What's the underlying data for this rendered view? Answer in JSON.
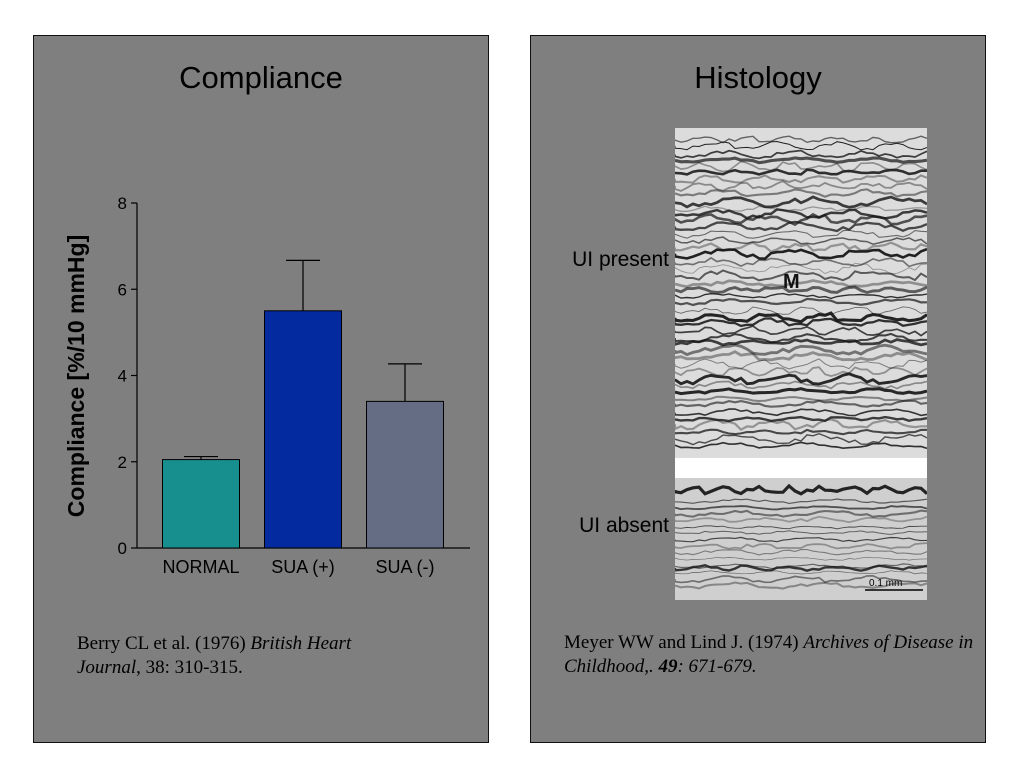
{
  "left_panel": {
    "title": "Compliance",
    "citation": {
      "authors": "Berry CL et al. (1976) ",
      "journal_a": "British Heart",
      "journal_b": "Journal",
      "rest": ", 38: 310-315."
    }
  },
  "right_panel": {
    "title": "Histology",
    "label_present": "UI present",
    "label_absent": "UI absent",
    "figure_mark": "M",
    "scale_label": "0.1 mm",
    "citation": {
      "authors": "Meyer WW and Lind J. (1974) ",
      "journal": "Archives of Disease in Childhood,. ",
      "volume": "49",
      "pages": ": 671-679."
    }
  },
  "chart_data": {
    "type": "bar",
    "ylabel": "Compliance [%/10 mmHg]",
    "categories": [
      "NORMAL",
      "SUA (+)",
      "SUA (-)"
    ],
    "values": [
      2.05,
      5.5,
      3.4
    ],
    "errors": [
      0.07,
      1.17,
      0.87
    ],
    "colors": [
      "#178f8f",
      "#042aa0",
      "#656d85"
    ],
    "ylim": [
      0,
      8
    ],
    "yticks": [
      "0",
      "2",
      "4",
      "6",
      "8"
    ],
    "grid": false
  }
}
